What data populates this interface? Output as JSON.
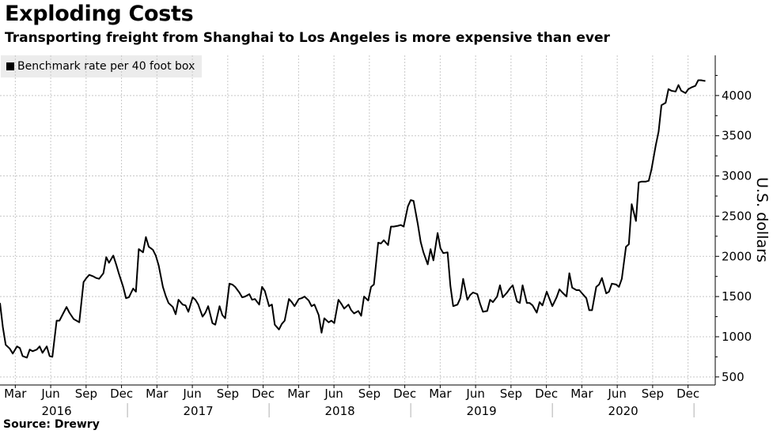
{
  "chart_data": {
    "type": "line",
    "title": "Exploding Costs",
    "subtitle": "Transporting freight from Shanghai to Los Angeles is more expensive than ever",
    "legend": "Benchmark rate per 40 foot box",
    "ylabel": "U.S. dollars",
    "source": "Source: Drewry",
    "ylim": [
      400,
      4500
    ],
    "yticks": [
      500,
      1000,
      1500,
      2000,
      2500,
      3000,
      3500,
      4000
    ],
    "grid": true,
    "legend_position": "top-left",
    "x_month_labels": [
      "Mar",
      "Jun",
      "Sep",
      "Dec",
      "Mar",
      "Jun",
      "Sep",
      "Dec",
      "Mar",
      "Jun",
      "Sep",
      "Dec",
      "Mar",
      "Jun",
      "Sep",
      "Dec",
      "Mar",
      "Jun",
      "Sep",
      "Dec"
    ],
    "x_month_positions": [
      2016.208,
      2016.458,
      2016.708,
      2016.958,
      2017.208,
      2017.458,
      2017.708,
      2017.958,
      2018.208,
      2018.458,
      2018.708,
      2018.958,
      2019.208,
      2019.458,
      2019.708,
      2019.958,
      2020.208,
      2020.458,
      2020.708,
      2020.958
    ],
    "x_year_labels": [
      "2016",
      "2017",
      "2018",
      "2019",
      "2020"
    ],
    "x_year_positions": [
      2016.5,
      2017.5,
      2018.5,
      2019.5,
      2020.5
    ],
    "x_year_boundaries": [
      2017.0,
      2018.0,
      2019.0,
      2020.0,
      2021.0
    ],
    "x_range": [
      2016.1,
      2021.15
    ],
    "series": [
      {
        "name": "Benchmark rate per 40 foot box",
        "x": [
          2016.1,
          2016.12,
          2016.14,
          2016.17,
          2016.19,
          2016.22,
          2016.24,
          2016.26,
          2016.29,
          2016.31,
          2016.33,
          2016.36,
          2016.38,
          2016.4,
          2016.43,
          2016.45,
          2016.47,
          2016.5,
          2016.52,
          2016.54,
          2016.57,
          2016.59,
          2016.62,
          2016.64,
          2016.66,
          2016.69,
          2016.71,
          2016.73,
          2016.76,
          2016.78,
          2016.8,
          2016.83,
          2016.85,
          2016.87,
          2016.9,
          2016.92,
          2016.94,
          2016.97,
          2016.99,
          2017.01,
          2017.04,
          2017.06,
          2017.08,
          2017.11,
          2017.13,
          2017.15,
          2017.18,
          2017.2,
          2017.22,
          2017.25,
          2017.27,
          2017.29,
          2017.32,
          2017.34,
          2017.36,
          2017.39,
          2017.41,
          2017.43,
          2017.46,
          2017.48,
          2017.5,
          2017.53,
          2017.55,
          2017.57,
          2017.6,
          2017.62,
          2017.65,
          2017.67,
          2017.69,
          2017.72,
          2017.74,
          2017.76,
          2017.79,
          2017.81,
          2017.83,
          2017.86,
          2017.88,
          2017.9,
          2017.93,
          2017.95,
          2017.97,
          2018.0,
          2018.02,
          2018.04,
          2018.07,
          2018.09,
          2018.11,
          2018.14,
          2018.16,
          2018.18,
          2018.21,
          2018.23,
          2018.25,
          2018.28,
          2018.3,
          2018.32,
          2018.35,
          2018.37,
          2018.39,
          2018.42,
          2018.44,
          2018.46,
          2018.49,
          2018.51,
          2018.53,
          2018.56,
          2018.58,
          2018.6,
          2018.63,
          2018.65,
          2018.67,
          2018.7,
          2018.72,
          2018.74,
          2018.77,
          2018.79,
          2018.81,
          2018.84,
          2018.86,
          2018.88,
          2018.91,
          2018.93,
          2018.95,
          2018.98,
          2019.0,
          2019.02,
          2019.05,
          2019.07,
          2019.09,
          2019.12,
          2019.14,
          2019.16,
          2019.19,
          2019.21,
          2019.23,
          2019.26,
          2019.28,
          2019.3,
          2019.33,
          2019.35,
          2019.37,
          2019.4,
          2019.42,
          2019.44,
          2019.47,
          2019.49,
          2019.51,
          2019.54,
          2019.56,
          2019.58,
          2019.61,
          2019.63,
          2019.65,
          2019.68,
          2019.7,
          2019.72,
          2019.75,
          2019.77,
          2019.79,
          2019.82,
          2019.84,
          2019.86,
          2019.89,
          2019.91,
          2019.93,
          2019.96,
          2019.98,
          2020.0,
          2020.03,
          2020.05,
          2020.07,
          2020.1,
          2020.12,
          2020.14,
          2020.17,
          2020.19,
          2020.21,
          2020.24,
          2020.26,
          2020.28,
          2020.31,
          2020.33,
          2020.35,
          2020.38,
          2020.4,
          2020.42,
          2020.45,
          2020.47,
          2020.49,
          2020.52,
          2020.54,
          2020.56,
          2020.59,
          2020.61,
          2020.63,
          2020.66,
          2020.68,
          2020.7,
          2020.73,
          2020.75,
          2020.77,
          2020.8,
          2020.82,
          2020.84,
          2020.87,
          2020.89,
          2020.91,
          2020.94,
          2020.96,
          2020.98,
          2021.01,
          2021.03,
          2021.05,
          2021.08
        ],
        "values": [
          1420,
          1120,
          900,
          850,
          790,
          880,
          860,
          760,
          740,
          840,
          820,
          840,
          880,
          800,
          880,
          760,
          750,
          1200,
          1200,
          1270,
          1370,
          1300,
          1220,
          1200,
          1180,
          1680,
          1730,
          1770,
          1750,
          1730,
          1720,
          1790,
          1990,
          1920,
          2010,
          1900,
          1780,
          1620,
          1480,
          1490,
          1600,
          1560,
          2090,
          2050,
          2240,
          2120,
          2080,
          2010,
          1890,
          1620,
          1510,
          1420,
          1370,
          1280,
          1460,
          1400,
          1390,
          1310,
          1490,
          1460,
          1400,
          1250,
          1300,
          1380,
          1170,
          1150,
          1380,
          1270,
          1230,
          1660,
          1650,
          1620,
          1550,
          1490,
          1500,
          1530,
          1460,
          1470,
          1400,
          1620,
          1570,
          1380,
          1400,
          1150,
          1090,
          1160,
          1200,
          1470,
          1430,
          1380,
          1470,
          1480,
          1500,
          1450,
          1380,
          1400,
          1270,
          1050,
          1230,
          1180,
          1200,
          1170,
          1460,
          1410,
          1350,
          1400,
          1330,
          1290,
          1320,
          1260,
          1500,
          1450,
          1620,
          1650,
          2170,
          2160,
          2200,
          2140,
          2370,
          2370,
          2380,
          2390,
          2370,
          2620,
          2700,
          2690,
          2400,
          2180,
          2050,
          1900,
          2090,
          1950,
          2290,
          2100,
          2040,
          2050,
          1630,
          1380,
          1400,
          1480,
          1720,
          1460,
          1520,
          1550,
          1530,
          1410,
          1310,
          1320,
          1460,
          1430,
          1500,
          1640,
          1490,
          1550,
          1600,
          1640,
          1440,
          1420,
          1640,
          1420,
          1420,
          1390,
          1300,
          1430,
          1390,
          1560,
          1470,
          1380,
          1490,
          1590,
          1550,
          1500,
          1790,
          1610,
          1580,
          1580,
          1540,
          1480,
          1330,
          1330,
          1620,
          1650,
          1730,
          1540,
          1560,
          1660,
          1650,
          1620,
          1720,
          2120,
          2150,
          2650,
          2440,
          2920,
          2930,
          2930,
          2940,
          3080,
          3380,
          3550,
          3880,
          3910,
          4080,
          4060,
          4050,
          4130,
          4060,
          4030,
          4080,
          4100,
          4120,
          4190,
          4190,
          4180
        ]
      }
    ]
  }
}
